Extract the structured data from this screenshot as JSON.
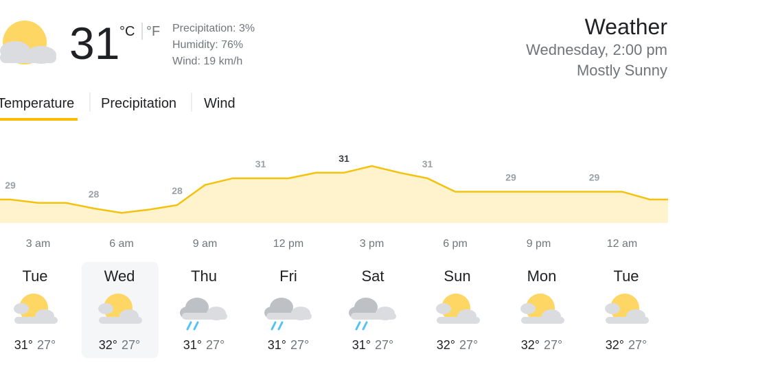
{
  "current": {
    "temperature": "31",
    "unit_c": "°C",
    "unit_f": "°F",
    "precipitation": "Precipitation: 3%",
    "humidity": "Humidity: 76%",
    "wind": "Wind: 19 km/h"
  },
  "header": {
    "title": "Weather",
    "datetime": "Wednesday, 2:00 pm",
    "condition": "Mostly Sunny"
  },
  "tabs": [
    "Temperature",
    "Precipitation",
    "Wind"
  ],
  "hourly": {
    "type": "area",
    "categories": [
      null,
      "3 am",
      null,
      null,
      "6 am",
      null,
      null,
      "9 am",
      null,
      null,
      "12 pm",
      null,
      null,
      "3 pm",
      null,
      null,
      "6 pm",
      null,
      null,
      "9 pm",
      null,
      null,
      "12 am",
      null
    ],
    "values": [
      28.6,
      28.3,
      28.3,
      27.8,
      27.4,
      27.7,
      28.1,
      29.9,
      30.5,
      30.5,
      30.5,
      31.0,
      31.0,
      31.6,
      31.0,
      30.5,
      29.3,
      29.3,
      29.3,
      29.3,
      29.3,
      29.3,
      29.3,
      28.6
    ],
    "value_labels": [
      "29",
      null,
      null,
      "28",
      null,
      null,
      "28",
      null,
      null,
      "31",
      null,
      null,
      "31",
      null,
      null,
      "31",
      null,
      null,
      "29",
      null,
      null,
      "29",
      null,
      null
    ],
    "ylim": [
      26.5,
      34.8
    ],
    "color": "#f4c20d",
    "fill": "#fef3cd"
  },
  "daily": [
    {
      "day": "Tue",
      "high": "31°",
      "low": "27°",
      "icon": "partly-sunny"
    },
    {
      "day": "Wed",
      "high": "32°",
      "low": "27°",
      "icon": "partly-sunny"
    },
    {
      "day": "Thu",
      "high": "31°",
      "low": "27°",
      "icon": "rain"
    },
    {
      "day": "Fri",
      "high": "31°",
      "low": "27°",
      "icon": "rain"
    },
    {
      "day": "Sat",
      "high": "31°",
      "low": "27°",
      "icon": "rain"
    },
    {
      "day": "Sun",
      "high": "32°",
      "low": "27°",
      "icon": "partly-sunny"
    },
    {
      "day": "Mon",
      "high": "32°",
      "low": "27°",
      "icon": "partly-sunny"
    },
    {
      "day": "Tue",
      "high": "32°",
      "low": "27°",
      "icon": "partly-sunny"
    }
  ]
}
